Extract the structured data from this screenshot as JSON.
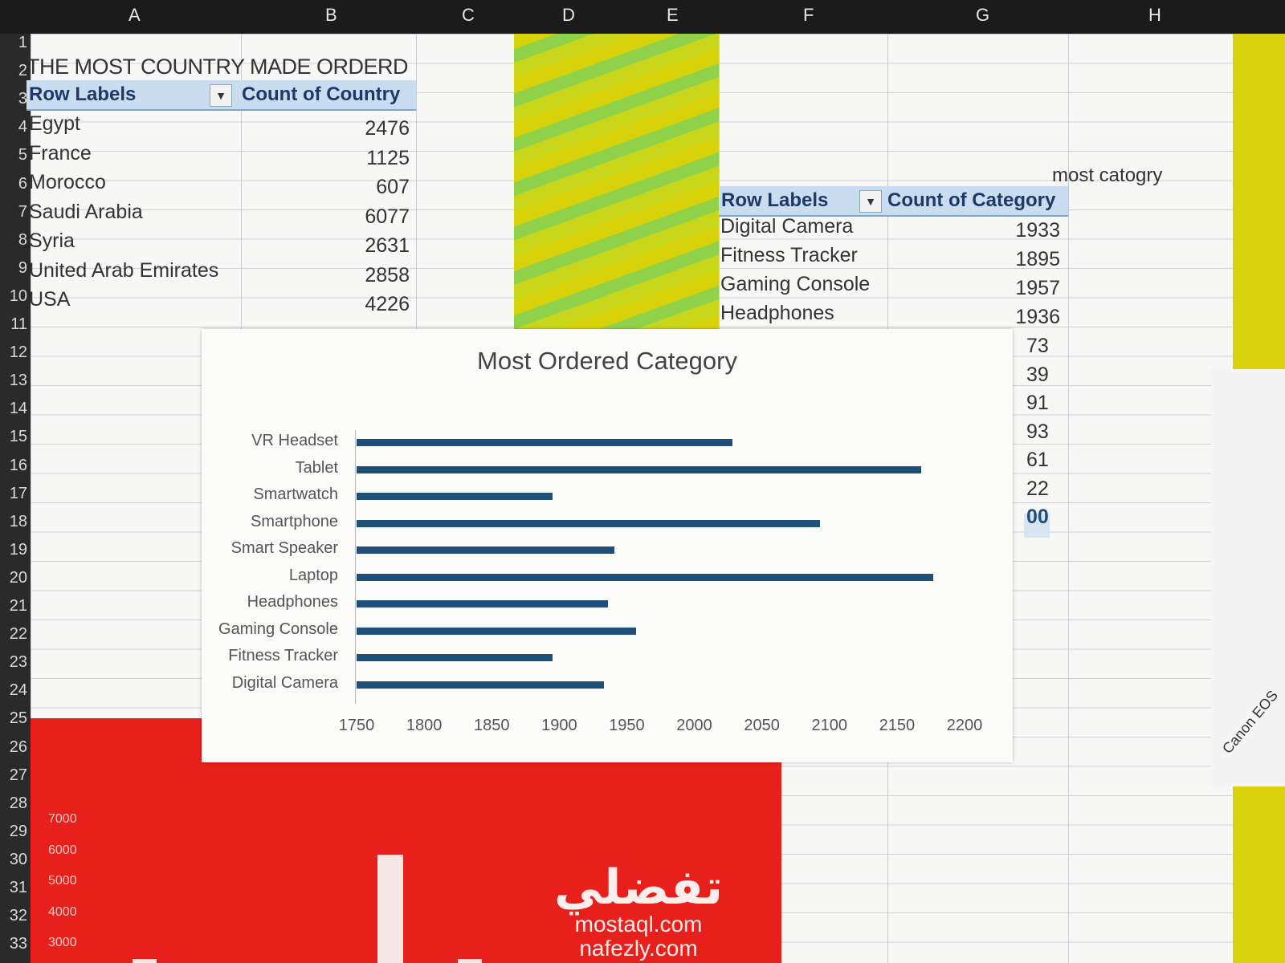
{
  "columns": [
    "A",
    "B",
    "C",
    "D",
    "E",
    "F",
    "G",
    "H"
  ],
  "rows": [
    "1",
    "2",
    "3",
    "4",
    "5",
    "6",
    "7",
    "8",
    "9",
    "10",
    "11",
    "12",
    "13",
    "14",
    "15",
    "16",
    "17",
    "18",
    "19",
    "20",
    "21",
    "22",
    "23",
    "24",
    "25",
    "26",
    "27",
    "28",
    "29",
    "30",
    "31",
    "32",
    "33"
  ],
  "country_pivot": {
    "title": "THE MOST COUNTRY MADE ORDERD",
    "row_labels_header": "Row Labels",
    "value_header": "Count of Country",
    "rows": [
      {
        "label": "Egypt",
        "value": "2476"
      },
      {
        "label": "France",
        "value": "1125"
      },
      {
        "label": "Morocco",
        "value": "607"
      },
      {
        "label": "Saudi Arabia",
        "value": "6077"
      },
      {
        "label": "Syria",
        "value": "2631"
      },
      {
        "label": "United Arab Emirates",
        "value": "2858"
      },
      {
        "label": "USA",
        "value": "4226"
      }
    ]
  },
  "category_pivot": {
    "side_label": "most catogry",
    "row_labels_header": "Row Labels",
    "value_header": "Count of Category",
    "rows": [
      {
        "label": "Digital Camera",
        "value": "1933"
      },
      {
        "label": "Fitness Tracker",
        "value": "1895"
      },
      {
        "label": "Gaming Console",
        "value": "1957"
      },
      {
        "label": "Headphones",
        "value": "1936"
      }
    ],
    "partial_values": [
      "73",
      "39",
      "91",
      "93",
      "61",
      "22",
      "00"
    ]
  },
  "chart_data": {
    "type": "bar",
    "orientation": "horizontal",
    "title": "Most Ordered Category",
    "categories": [
      "VR Headset",
      "Tablet",
      "Smartwatch",
      "Smartphone",
      "Smart Speaker",
      "Laptop",
      "Headphones",
      "Gaming Console",
      "Fitness Tracker",
      "Digital Camera"
    ],
    "values": [
      2028,
      2168,
      1895,
      2093,
      1941,
      2177,
      1936,
      1957,
      1895,
      1933
    ],
    "xlim": [
      1750,
      2200
    ],
    "xticks": [
      "1750",
      "1800",
      "1850",
      "1900",
      "1950",
      "2000",
      "2050",
      "2100",
      "2150",
      "2200"
    ],
    "grid": false,
    "legend": "none",
    "bar_color": "#1f4e79"
  },
  "second_chart": {
    "yticks": [
      "7000",
      "6000",
      "5000",
      "4000",
      "3000"
    ],
    "background_color": "#e8201b"
  },
  "side_card_text": "Canon EOS",
  "watermark": {
    "arabic": "تفضلي",
    "url1": "mostaql.com",
    "url2": "nafezly.com"
  }
}
